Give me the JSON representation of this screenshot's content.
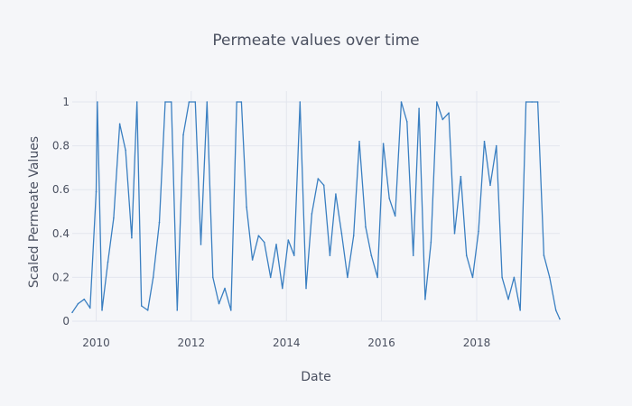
{
  "chart_data": {
    "type": "line",
    "title": "Permeate values over time",
    "xlabel": "Date",
    "ylabel": "Scaled Permeate Values",
    "x_range": [
      "2009-07-01",
      "2019-10-01"
    ],
    "ylim": [
      0,
      1
    ],
    "x_ticks": [
      "2010",
      "2012",
      "2014",
      "2016",
      "2018"
    ],
    "y_ticks": [
      "0",
      "0.2",
      "0.4",
      "0.6",
      "0.8",
      "1"
    ],
    "grid": true,
    "legend": "none",
    "series": [
      {
        "color": "#3a7fc1",
        "x": [
          "2009-07-01",
          "2009-08-15",
          "2009-10-01",
          "2009-11-15",
          "2010-01-01",
          "2010-01-10",
          "2010-02-15",
          "2010-04-01",
          "2010-05-15",
          "2010-07-01",
          "2010-08-15",
          "2010-10-01",
          "2010-11-10",
          "2010-12-15",
          "2011-02-01",
          "2011-03-15",
          "2011-05-01",
          "2011-06-15",
          "2011-08-01",
          "2011-09-15",
          "2011-11-01",
          "2011-12-15",
          "2012-02-01",
          "2012-03-15",
          "2012-05-01",
          "2012-06-15",
          "2012-08-01",
          "2012-09-15",
          "2012-11-01",
          "2012-12-15",
          "2013-01-20",
          "2013-03-01",
          "2013-04-15",
          "2013-06-01",
          "2013-07-15",
          "2013-09-01",
          "2013-10-15",
          "2013-12-01",
          "2014-01-15",
          "2014-03-01",
          "2014-04-15",
          "2014-06-01",
          "2014-07-15",
          "2014-09-01",
          "2014-10-15",
          "2014-12-01",
          "2015-01-15",
          "2015-03-01",
          "2015-04-15",
          "2015-06-01",
          "2015-07-15",
          "2015-09-01",
          "2015-10-15",
          "2015-12-01",
          "2016-01-15",
          "2016-03-01",
          "2016-04-15",
          "2016-06-01",
          "2016-07-15",
          "2016-09-01",
          "2016-10-15",
          "2016-12-01",
          "2017-01-15",
          "2017-03-01",
          "2017-04-15",
          "2017-06-01",
          "2017-07-15",
          "2017-09-01",
          "2017-10-15",
          "2017-12-01",
          "2018-01-15",
          "2018-03-01",
          "2018-04-15",
          "2018-06-01",
          "2018-07-15",
          "2018-09-01",
          "2018-10-15",
          "2018-12-01",
          "2019-01-15",
          "2019-03-01",
          "2019-04-15",
          "2019-06-01",
          "2019-07-15",
          "2019-09-01",
          "2019-10-01"
        ],
        "y": [
          0.04,
          0.08,
          0.1,
          0.06,
          0.59,
          1.0,
          0.05,
          0.27,
          0.47,
          0.9,
          0.78,
          0.38,
          1.0,
          0.07,
          0.05,
          0.2,
          0.45,
          1.0,
          1.0,
          0.05,
          0.85,
          1.0,
          1.0,
          0.35,
          1.0,
          0.2,
          0.08,
          0.15,
          0.05,
          1.0,
          1.0,
          0.52,
          0.28,
          0.39,
          0.36,
          0.2,
          0.35,
          0.15,
          0.37,
          0.3,
          1.0,
          0.15,
          0.49,
          0.65,
          0.62,
          0.3,
          0.58,
          0.4,
          0.2,
          0.39,
          0.82,
          0.43,
          0.3,
          0.2,
          0.81,
          0.56,
          0.48,
          1.0,
          0.91,
          0.3,
          0.97,
          0.1,
          0.36,
          1.0,
          0.92,
          0.95,
          0.4,
          0.66,
          0.3,
          0.2,
          0.41,
          0.82,
          0.62,
          0.8,
          0.2,
          0.1,
          0.2,
          0.05,
          1.0,
          1.0,
          1.0,
          0.3,
          0.2,
          0.05,
          0.01
        ]
      }
    ]
  }
}
